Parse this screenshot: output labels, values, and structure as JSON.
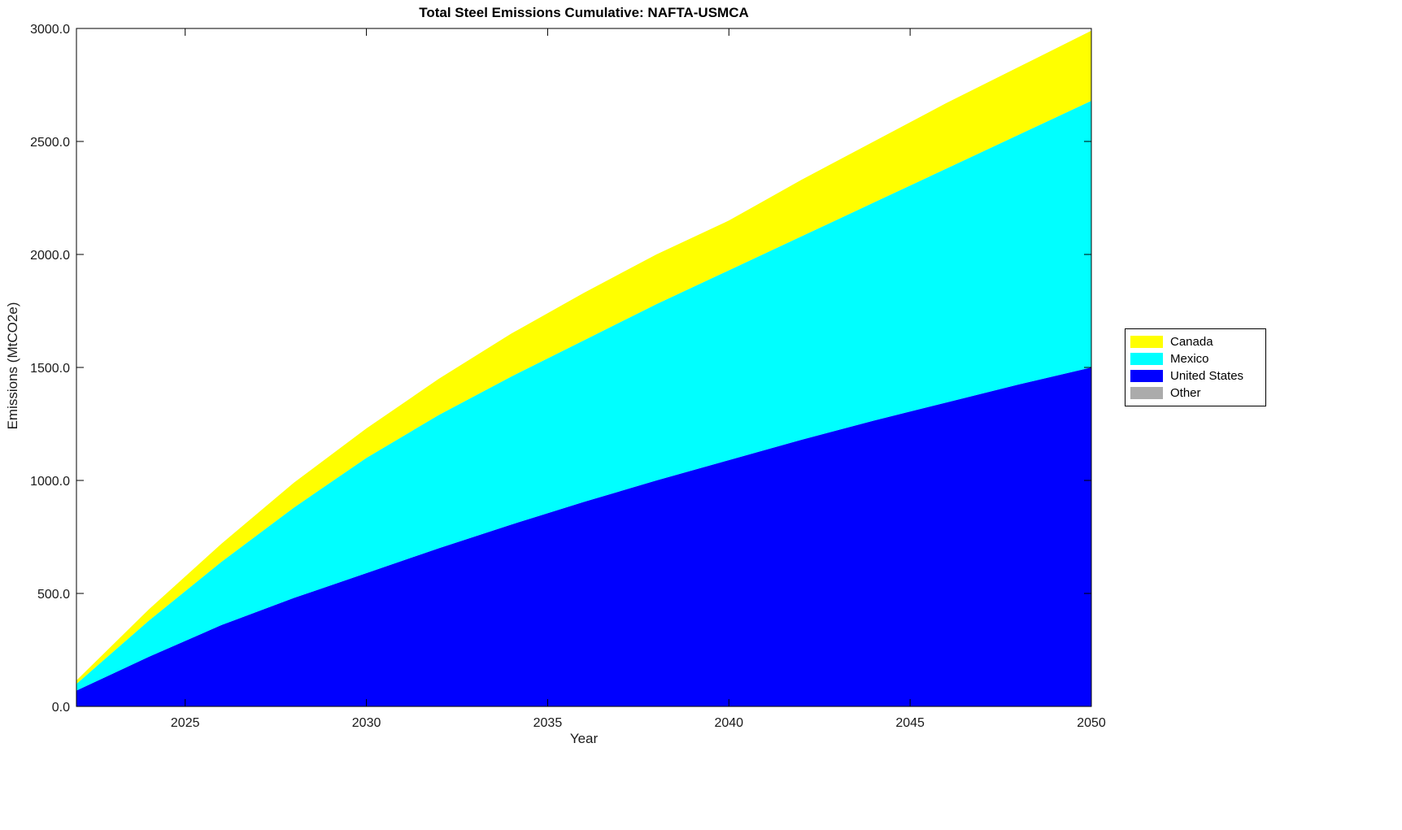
{
  "figure": {
    "background": "#FFFFFF"
  },
  "chart_data": {
    "type": "area",
    "stacked": true,
    "title": "Total Steel Emissions Cumulative: NAFTA-USMCA",
    "xlabel": "Year",
    "ylabel": "Emissions (MtCO2e)",
    "xlim": [
      2022,
      2050
    ],
    "ylim": [
      0,
      3000
    ],
    "xticks": [
      2025,
      2030,
      2035,
      2040,
      2045,
      2050
    ],
    "yticks": [
      0,
      500,
      1000,
      1500,
      2000,
      2500,
      3000
    ],
    "ytick_decimals": 1,
    "grid": false,
    "legend_position": "right-outside",
    "x": [
      2022,
      2024,
      2026,
      2028,
      2030,
      2032,
      2034,
      2036,
      2038,
      2040,
      2042,
      2044,
      2046,
      2048,
      2050
    ],
    "series": [
      {
        "name": "United States",
        "color": "#0000FF",
        "values": [
          70,
          220,
          360,
          480,
          590,
          700,
          805,
          905,
          1000,
          1090,
          1180,
          1265,
          1345,
          1425,
          1500
        ]
      },
      {
        "name": "Mexico",
        "color": "#00FFFF",
        "values": [
          30,
          160,
          280,
          400,
          510,
          590,
          655,
          715,
          780,
          840,
          900,
          965,
          1035,
          1105,
          1180
        ]
      },
      {
        "name": "Canada",
        "color": "#FFFF00",
        "values": [
          15,
          50,
          80,
          110,
          130,
          160,
          190,
          210,
          220,
          220,
          250,
          270,
          290,
          300,
          310
        ]
      },
      {
        "name": "Other",
        "color": "#ABABAB",
        "values": [
          0,
          0,
          0,
          0,
          0,
          0,
          0,
          0,
          0,
          0,
          0,
          0,
          0,
          0,
          0
        ]
      }
    ],
    "legend": {
      "entries": [
        {
          "label": "Canada",
          "color": "#FFFF00"
        },
        {
          "label": "Mexico",
          "color": "#00FFFF"
        },
        {
          "label": "United States",
          "color": "#0000FF"
        },
        {
          "label": "Other",
          "color": "#ABABAB"
        }
      ]
    }
  }
}
